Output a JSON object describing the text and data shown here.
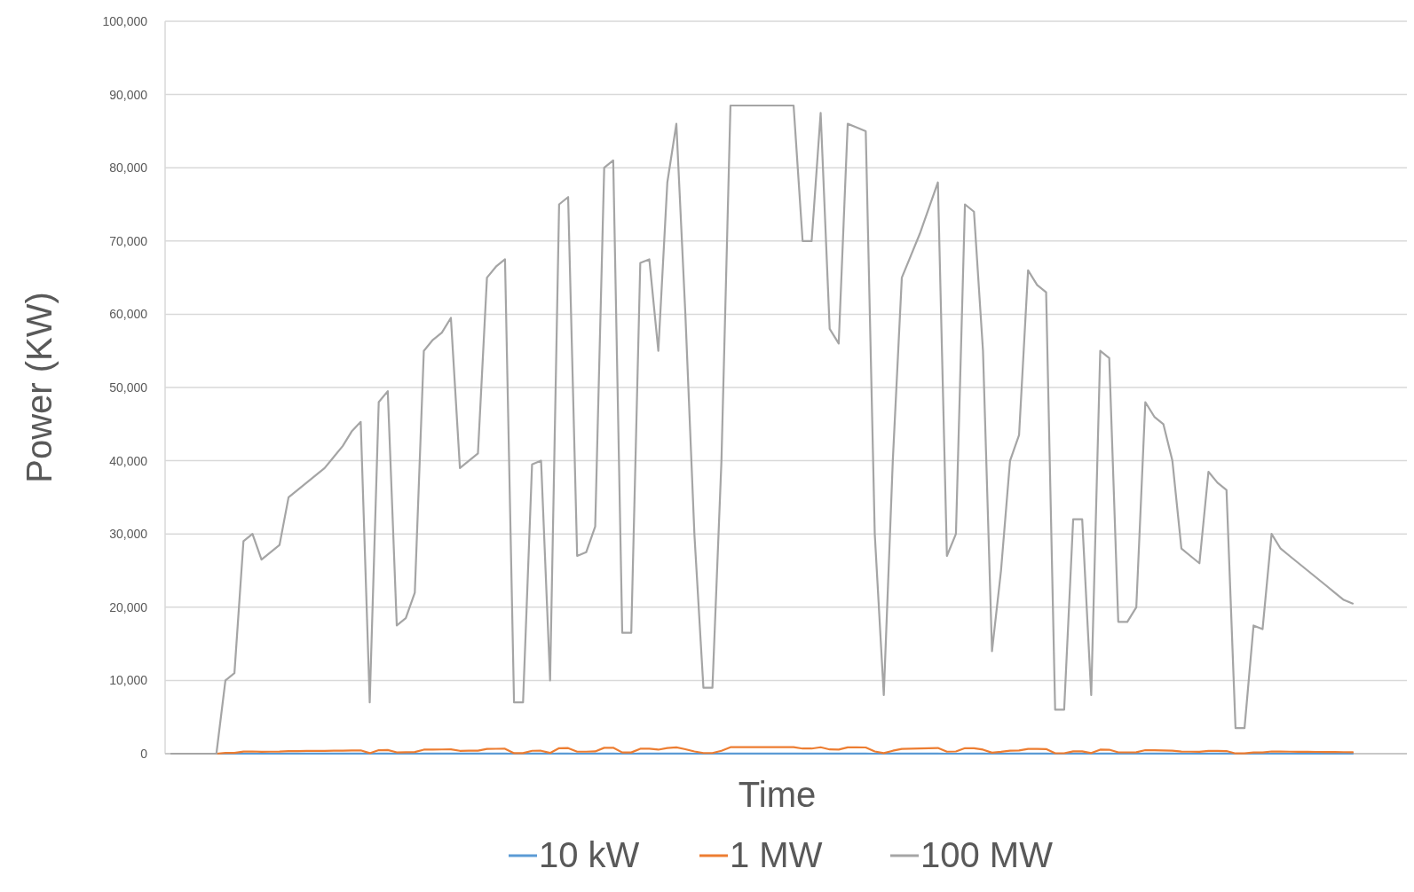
{
  "chart_data": {
    "type": "line",
    "xlabel": "Time",
    "ylabel": "Power (KW)",
    "ylim": [
      0,
      100000
    ],
    "yticks": [
      {
        "value": 0,
        "label": "0"
      },
      {
        "value": 10000,
        "label": "10,000"
      },
      {
        "value": 20000,
        "label": "20,000"
      },
      {
        "value": 30000,
        "label": "30,000"
      },
      {
        "value": 40000,
        "label": "40,000"
      },
      {
        "value": 50000,
        "label": "50,000"
      },
      {
        "value": 60000,
        "label": "60,000"
      },
      {
        "value": 70000,
        "label": "70,000"
      },
      {
        "value": 80000,
        "label": "80,000"
      },
      {
        "value": 90000,
        "label": "90,000"
      },
      {
        "value": 100000,
        "label": "100,000"
      }
    ],
    "tick_labels": "y",
    "grid": "y",
    "legend": "bottom",
    "marker": "none",
    "line_style": "solid",
    "categories": [
      null,
      null,
      null,
      null,
      null,
      null,
      null,
      null,
      null,
      null,
      null,
      null,
      null,
      null,
      null,
      null,
      null,
      null,
      null,
      null,
      null,
      null,
      null,
      null,
      null,
      null,
      null,
      null,
      null,
      null,
      null,
      null,
      null,
      null,
      null,
      null,
      null,
      null,
      null,
      null,
      null,
      null,
      null,
      null,
      null,
      null,
      null,
      null,
      null,
      null,
      null,
      null,
      null,
      null,
      null,
      null,
      null,
      null,
      null,
      null,
      null,
      null,
      null,
      null,
      null,
      null,
      null,
      null,
      null,
      null,
      null,
      null,
      null,
      null,
      null,
      null,
      null,
      null,
      null,
      null,
      null,
      null,
      null,
      null,
      null,
      null,
      null,
      null,
      null,
      null,
      null,
      null,
      null,
      null,
      null,
      null,
      null,
      null,
      null,
      null,
      null,
      null,
      null,
      null,
      null,
      null,
      null,
      null,
      null,
      null,
      null,
      null,
      null,
      null,
      null,
      null,
      null,
      null,
      null,
      null,
      null,
      null,
      null,
      null,
      null,
      null,
      null,
      null,
      null,
      null,
      null,
      null
    ],
    "series": [
      {
        "name": "10 kW",
        "color": "#5b9bd5",
        "values": [
          null,
          null,
          null,
          null,
          null,
          0,
          1,
          1.1,
          2.9,
          3,
          2.7,
          2.8,
          2.9,
          3.5,
          3.6,
          3.7,
          3.8,
          3.9,
          4.1,
          4.2,
          4.4,
          4.5,
          0.7,
          4.8,
          5,
          1.8,
          1.9,
          2.2,
          5.5,
          5.7,
          5.8,
          6,
          3.9,
          4,
          4.1,
          6.5,
          6.7,
          6.8,
          0.7,
          0.7,
          4,
          4,
          1,
          7.5,
          7.6,
          2.7,
          2.8,
          3.1,
          8,
          8.1,
          1.7,
          1.7,
          6.7,
          6.8,
          5.5,
          7.8,
          8.6,
          6,
          3,
          0.9,
          0.9,
          4,
          8.9,
          8.9,
          8.9,
          8.9,
          8.9,
          8.9,
          8.9,
          8.9,
          7,
          7,
          8.8,
          5.8,
          5.6,
          8.6,
          8.6,
          8.5,
          3,
          0.8,
          4,
          6.5,
          6.8,
          7.1,
          7.5,
          7.8,
          2.7,
          3,
          7.5,
          7.4,
          5.5,
          1.4,
          2.5,
          4,
          4.4,
          6.6,
          6.4,
          6.3,
          0.6,
          0.6,
          3.2,
          3.2,
          0.8,
          5.5,
          5.4,
          1.8,
          1.8,
          2,
          4.8,
          4.6,
          4.5,
          4,
          2.8,
          2.7,
          2.6,
          3.9,
          3.7,
          3.6,
          0.4,
          0.4,
          1.8,
          1.7,
          3,
          2.8,
          2.7,
          2.6,
          2.5,
          2.4,
          2.3,
          2.2,
          2.1,
          2.1
        ]
      },
      {
        "name": "1 MW",
        "color": "#ed7d31",
        "values": [
          null,
          null,
          null,
          null,
          null,
          0,
          100,
          110,
          290,
          300,
          265,
          275,
          285,
          350,
          360,
          370,
          380,
          390,
          405,
          420,
          440,
          453,
          70,
          480,
          495,
          175,
          185,
          220,
          550,
          565,
          575,
          595,
          390,
          400,
          410,
          650,
          665,
          675,
          70,
          70,
          395,
          400,
          100,
          750,
          760,
          270,
          275,
          310,
          800,
          810,
          165,
          165,
          670,
          675,
          550,
          780,
          860,
          600,
          300,
          90,
          90,
          400,
          885,
          885,
          885,
          885,
          885,
          885,
          885,
          885,
          700,
          700,
          875,
          580,
          560,
          860,
          855,
          850,
          300,
          80,
          400,
          650,
          680,
          710,
          745,
          780,
          270,
          300,
          750,
          740,
          550,
          140,
          250,
          400,
          435,
          660,
          640,
          630,
          60,
          60,
          320,
          320,
          80,
          550,
          540,
          180,
          180,
          200,
          480,
          460,
          450,
          400,
          280,
          270,
          260,
          385,
          370,
          360,
          35,
          35,
          175,
          170,
          300,
          280,
          270,
          260,
          250,
          240,
          230,
          220,
          210,
          205
        ]
      },
      {
        "name": "100 MW",
        "color": "#a5a5a5",
        "values": [
          0,
          0,
          0,
          0,
          0,
          0,
          10000,
          11000,
          29000,
          30000,
          26500,
          27500,
          28500,
          35000,
          36000,
          37000,
          38000,
          39000,
          40500,
          42000,
          44000,
          45300,
          7000,
          48000,
          49500,
          17500,
          18500,
          22000,
          55000,
          56500,
          57500,
          59500,
          39000,
          40000,
          41000,
          65000,
          66500,
          67500,
          7000,
          7000,
          39500,
          40000,
          10000,
          75000,
          76000,
          27000,
          27500,
          31000,
          80000,
          81000,
          16500,
          16500,
          67000,
          67500,
          55000,
          78000,
          86000,
          60000,
          30000,
          9000,
          9000,
          40000,
          88500,
          88500,
          88500,
          88500,
          88500,
          88500,
          88500,
          88500,
          70000,
          70000,
          87500,
          58000,
          56000,
          86000,
          85500,
          85000,
          30000,
          8000,
          40000,
          65000,
          68000,
          71000,
          74500,
          78000,
          27000,
          30000,
          75000,
          74000,
          55000,
          14000,
          25000,
          40000,
          43500,
          66000,
          64000,
          63000,
          6000,
          6000,
          32000,
          32000,
          8000,
          55000,
          54000,
          18000,
          18000,
          20000,
          48000,
          46000,
          45000,
          40000,
          28000,
          27000,
          26000,
          38500,
          37000,
          36000,
          3500,
          3500,
          17500,
          17000,
          30000,
          28000,
          27000,
          26000,
          25000,
          24000,
          23000,
          22000,
          21000,
          20500
        ]
      }
    ]
  }
}
